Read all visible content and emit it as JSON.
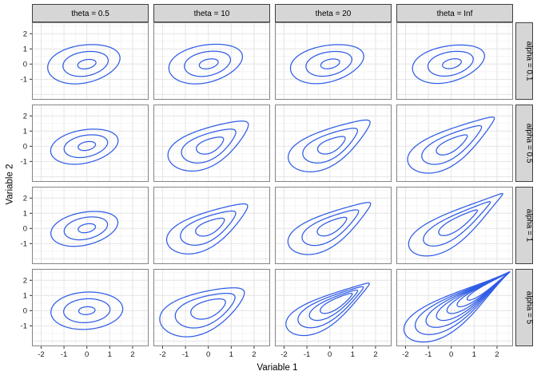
{
  "figure": {
    "xlabel": "Variable 1",
    "ylabel": "Variable 2"
  },
  "chart_data": {
    "type": "contour-facet-grid",
    "title": "",
    "xlabel": "Variable 1",
    "ylabel": "Variable 2",
    "facet_col_variable": "theta",
    "facet_row_variable": "alpha",
    "cols": [
      {
        "label": "theta = 0.5"
      },
      {
        "label": "theta = 10"
      },
      {
        "label": "theta = 20"
      },
      {
        "label": "theta = Inf"
      }
    ],
    "xlim": [
      -2.4,
      2.7
    ],
    "ylim": [
      -2.35,
      2.75
    ],
    "x_ticks": [
      -2,
      -1,
      0,
      1,
      2
    ],
    "y_ticks": [
      2,
      1,
      0,
      -1
    ],
    "grid": {
      "major_x": [
        -2,
        -1,
        0,
        1,
        2
      ],
      "minor_x": [
        -1.5,
        -0.5,
        0.5,
        1.5,
        2.5
      ],
      "major_y": [
        -2,
        -1,
        0,
        1,
        2
      ],
      "minor_y": [
        -1.5,
        -0.5,
        0.5,
        1.5,
        2.5
      ]
    },
    "style": {
      "line_color": "#2f5ce6",
      "panel_bg": "#ffffff",
      "panel_border": "#858585",
      "grid_major": "#e4e4e4",
      "grid_minor": "#f2f2f2",
      "strip_bg": "#d6d6d6",
      "strip_border": "#3f3f3f",
      "tick_color": "#333333",
      "text_color": "#1a1a1a"
    },
    "contour_format": "[cx, cy, rx, ry, rot_deg, skew] in data units; skew 0 = ellipse, 1 = sharp teardrop tip toward rot direction",
    "rows": [
      {
        "label": "alpha = 0.1",
        "panels": [
          {
            "contours": [
              [
                -0.12,
                0.03,
                1.65,
                1.3,
                25,
                0.15
              ],
              [
                -0.05,
                0.03,
                1.03,
                0.82,
                25,
                0.12
              ],
              [
                0.0,
                0.0,
                0.42,
                0.3,
                25,
                0.1
              ]
            ]
          },
          {
            "contours": [
              [
                -0.1,
                0.05,
                1.7,
                1.3,
                27,
                0.18
              ],
              [
                -0.03,
                0.04,
                1.06,
                0.82,
                27,
                0.14
              ],
              [
                0.02,
                0.02,
                0.44,
                0.31,
                27,
                0.1
              ]
            ]
          },
          {
            "contours": [
              [
                -0.1,
                0.05,
                1.7,
                1.28,
                27,
                0.2
              ],
              [
                -0.03,
                0.04,
                1.06,
                0.8,
                27,
                0.15
              ],
              [
                0.02,
                0.02,
                0.44,
                0.3,
                27,
                0.1
              ]
            ]
          },
          {
            "contours": [
              [
                -0.1,
                0.05,
                1.68,
                1.26,
                28,
                0.22
              ],
              [
                -0.02,
                0.05,
                1.05,
                0.8,
                28,
                0.16
              ],
              [
                0.03,
                0.03,
                0.44,
                0.3,
                28,
                0.1
              ]
            ]
          }
        ]
      },
      {
        "label": "alpha = 0.5",
        "panels": [
          {
            "contours": [
              [
                -0.1,
                0.0,
                1.55,
                1.12,
                25,
                0.12
              ],
              [
                -0.04,
                0.02,
                1.0,
                0.72,
                25,
                0.1
              ],
              [
                0.0,
                0.02,
                0.4,
                0.28,
                25,
                0.08
              ]
            ]
          },
          {
            "contours": [
              [
                0.1,
                0.15,
                2.15,
                1.5,
                42,
                0.6
              ],
              [
                0.08,
                0.1,
                1.45,
                1.0,
                42,
                0.55
              ],
              [
                0.1,
                0.08,
                0.72,
                0.5,
                42,
                0.45
              ]
            ]
          },
          {
            "contours": [
              [
                0.08,
                0.15,
                2.25,
                1.45,
                43,
                0.66
              ],
              [
                0.08,
                0.12,
                1.5,
                0.95,
                43,
                0.58
              ],
              [
                0.1,
                0.1,
                0.75,
                0.48,
                43,
                0.48
              ]
            ]
          },
          {
            "contours": [
              [
                0.1,
                0.2,
                2.45,
                1.45,
                44,
                0.74
              ],
              [
                0.08,
                0.15,
                1.7,
                0.92,
                44,
                0.64
              ],
              [
                0.05,
                0.12,
                0.88,
                0.46,
                44,
                0.52
              ]
            ]
          }
        ]
      },
      {
        "label": "alpha = 1",
        "panels": [
          {
            "contours": [
              [
                -0.1,
                0.0,
                1.55,
                1.1,
                26,
                0.12
              ],
              [
                -0.04,
                0.02,
                1.0,
                0.72,
                26,
                0.1
              ],
              [
                0.0,
                0.02,
                0.4,
                0.28,
                26,
                0.08
              ]
            ]
          },
          {
            "contours": [
              [
                0.05,
                0.1,
                2.2,
                1.42,
                42,
                0.66
              ],
              [
                0.05,
                0.1,
                1.5,
                0.94,
                42,
                0.58
              ],
              [
                0.1,
                0.12,
                0.78,
                0.48,
                42,
                0.48
              ]
            ]
          },
          {
            "contours": [
              [
                0.08,
                0.12,
                2.3,
                1.38,
                43,
                0.72
              ],
              [
                0.08,
                0.12,
                1.58,
                0.88,
                43,
                0.62
              ],
              [
                0.12,
                0.15,
                0.82,
                0.45,
                43,
                0.5
              ]
            ]
          },
          {
            "contours": [
              [
                0.3,
                0.35,
                2.75,
                1.4,
                45,
                0.85
              ],
              [
                0.3,
                0.36,
                1.98,
                0.86,
                45,
                0.76
              ],
              [
                0.32,
                0.4,
                1.15,
                0.45,
                45,
                0.62
              ]
            ]
          }
        ]
      },
      {
        "label": "alpha = 5",
        "panels": [
          {
            "contours": [
              [
                0.0,
                0.0,
                1.58,
                1.25,
                10,
                0.05
              ],
              [
                0.0,
                0.0,
                1.02,
                0.8,
                10,
                0.05
              ],
              [
                0.0,
                0.0,
                0.36,
                0.26,
                10,
                0.04
              ]
            ]
          },
          {
            "contours": [
              [
                -0.18,
                0.05,
                2.15,
                1.6,
                38,
                0.55
              ],
              [
                -0.08,
                0.1,
                1.52,
                1.1,
                38,
                0.5
              ],
              [
                0.02,
                0.15,
                0.88,
                0.62,
                38,
                0.4
              ]
            ]
          },
          {
            "contours": [
              [
                0.0,
                0.2,
                2.35,
                1.3,
                43,
                0.8
              ],
              [
                0.1,
                0.3,
                1.85,
                0.95,
                43,
                0.74
              ],
              [
                0.2,
                0.4,
                1.38,
                0.63,
                43,
                0.66
              ],
              [
                0.3,
                0.5,
                0.92,
                0.38,
                43,
                0.56
              ]
            ]
          },
          {
            "contours": [
              [
                0.36,
                0.36,
                3.1,
                1.55,
                45,
                0.95
              ],
              [
                0.57,
                0.57,
                2.8,
                1.22,
                45,
                0.95
              ],
              [
                0.78,
                0.78,
                2.5,
                0.95,
                45,
                0.95
              ],
              [
                0.99,
                0.99,
                2.2,
                0.73,
                45,
                0.95
              ],
              [
                1.21,
                1.21,
                1.9,
                0.55,
                45,
                0.95
              ],
              [
                1.42,
                1.42,
                1.6,
                0.4,
                45,
                0.94
              ],
              [
                1.63,
                1.63,
                1.3,
                0.28,
                45,
                0.93
              ]
            ]
          }
        ]
      }
    ]
  }
}
